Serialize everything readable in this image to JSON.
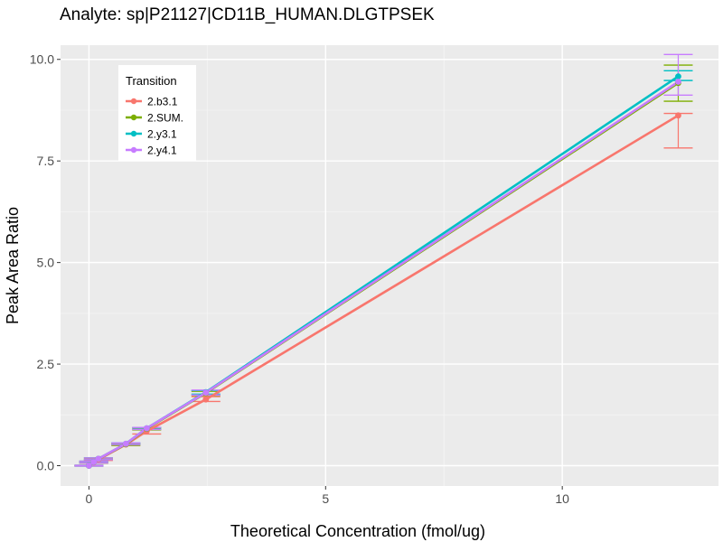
{
  "chart_data": {
    "type": "line",
    "title": "Analyte: sp|P21127|CD11B_HUMAN.DLGTPSEK",
    "xlabel": "Theoretical Concentration (fmol/ug)",
    "ylabel": "Peak Area Ratio",
    "xlim": [
      -0.6,
      13.3
    ],
    "ylim": [
      -0.5,
      10.35
    ],
    "xticks": [
      0,
      5,
      10
    ],
    "xtick_labels": [
      "0",
      "5",
      "10"
    ],
    "yticks": [
      0.0,
      2.5,
      5.0,
      7.5,
      10.0
    ],
    "ytick_labels": [
      "0.0",
      "2.5",
      "5.0",
      "7.5",
      "10.0"
    ],
    "grid": true,
    "legend_title": "Transition",
    "legend_position": "top-left",
    "x": [
      0,
      0.1,
      0.2,
      0.78,
      1.22,
      2.47,
      12.45
    ],
    "series": [
      {
        "name": "2.b3.1",
        "color": "#F8766D",
        "y": [
          0.0,
          0.08,
          0.15,
          0.52,
          0.85,
          1.63,
          8.62
        ],
        "err_low": [
          0.0,
          0.06,
          0.13,
          0.5,
          0.78,
          1.58,
          7.82
        ],
        "err_high": [
          0.0,
          0.1,
          0.17,
          0.54,
          0.9,
          1.7,
          8.67
        ]
      },
      {
        "name": "2.SUM.",
        "color": "#7CAE00",
        "y": [
          0.0,
          0.09,
          0.17,
          0.53,
          0.91,
          1.79,
          9.42
        ],
        "err_low": [
          -0.01,
          0.07,
          0.15,
          0.5,
          0.88,
          1.73,
          8.97
        ],
        "err_high": [
          0.01,
          0.11,
          0.19,
          0.55,
          0.93,
          1.83,
          9.86
        ]
      },
      {
        "name": "2.y3.1",
        "color": "#00BFC4",
        "y": [
          0.0,
          0.09,
          0.17,
          0.54,
          0.92,
          1.81,
          9.58
        ],
        "err_low": [
          -0.01,
          0.07,
          0.15,
          0.52,
          0.9,
          1.76,
          9.48
        ],
        "err_high": [
          0.01,
          0.11,
          0.19,
          0.56,
          0.94,
          1.85,
          9.72
        ]
      },
      {
        "name": "2.y4.1",
        "color": "#C77CFF",
        "y": [
          0.0,
          0.09,
          0.17,
          0.54,
          0.92,
          1.8,
          9.45
        ],
        "err_low": [
          -0.01,
          0.07,
          0.15,
          0.52,
          0.89,
          1.74,
          9.12
        ],
        "err_high": [
          0.01,
          0.11,
          0.19,
          0.56,
          0.94,
          1.86,
          10.12
        ]
      }
    ]
  }
}
